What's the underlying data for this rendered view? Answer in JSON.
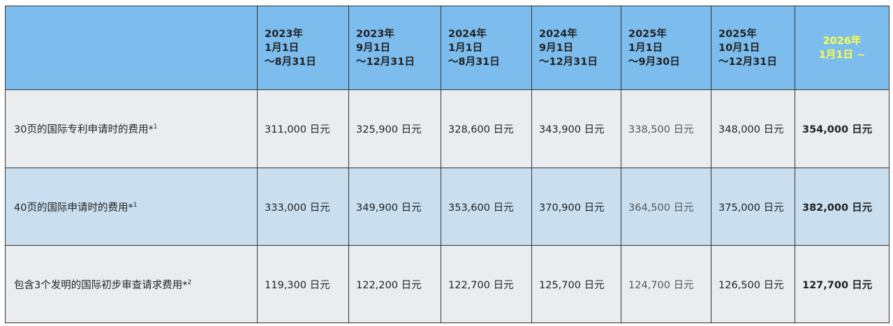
{
  "table": {
    "header": [
      [
        "2023年",
        "1月1日",
        "～8月31日"
      ],
      [
        "2023年",
        "9月1日",
        "～12月31日"
      ],
      [
        "2024年",
        "1月1日",
        "～8月31日"
      ],
      [
        "2024年",
        "9月1日",
        "～12月31日"
      ],
      [
        "2025年",
        "1月1日",
        "～9月30日"
      ],
      [
        "2025年",
        "10月1日",
        "～12月31日"
      ],
      [
        "2026年",
        "1月1日 ~"
      ]
    ],
    "rows": [
      {
        "label": "30页的国际专利申请时的费用*",
        "note": "1",
        "cells": [
          "311,000 日元",
          "325,900 日元",
          "328,600 日元",
          "343,900 日元",
          "338,500 日元",
          "348,000 日元",
          "354,000 日元"
        ]
      },
      {
        "label": "40页的国际申请时的费用*",
        "note": "1",
        "cells": [
          "333,000 日元",
          "349,900 日元",
          "353,600 日元",
          "370,900 日元",
          "364,500 日元",
          "375,000 日元",
          "382,000 日元"
        ]
      },
      {
        "label": "包含3个发明的国际初步审查请求费用*",
        "note": "2",
        "cells": [
          "119,300 日元",
          "122,200 日元",
          "122,700 日元",
          "125,700 日元",
          "124,700 日元",
          "126,500 日元",
          "127,700 日元"
        ]
      }
    ]
  }
}
